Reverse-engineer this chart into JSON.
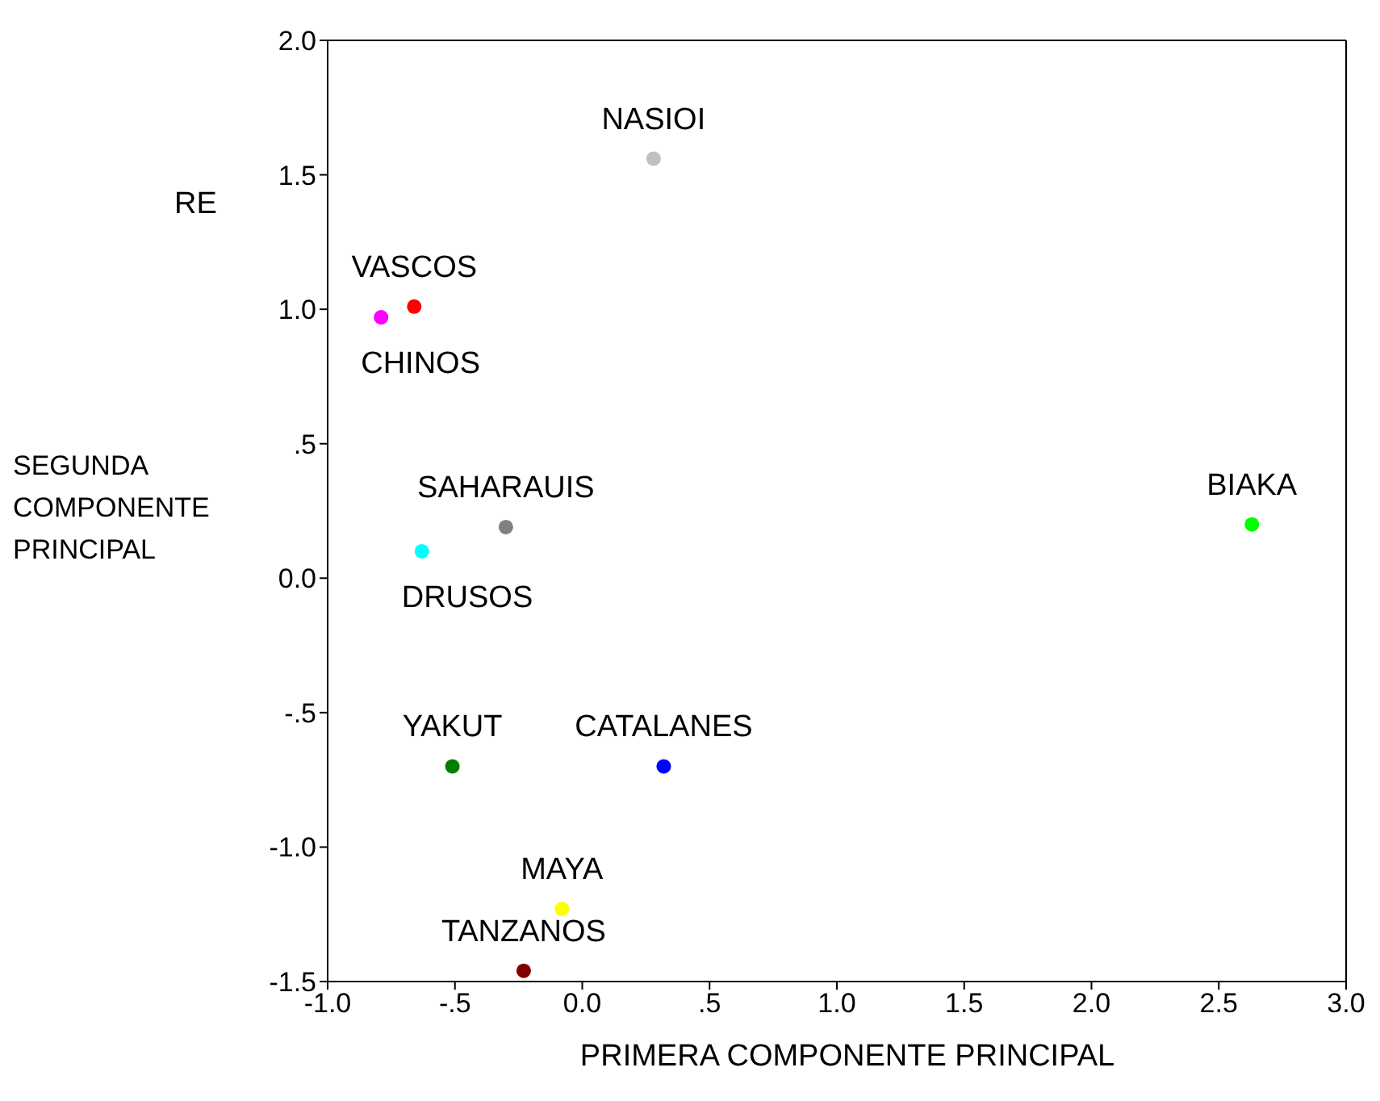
{
  "chart_data": {
    "type": "scatter",
    "xlabel": "PRIMERA COMPONENTE PRINCIPAL",
    "ylabel": "SEGUNDA COMPONENTE PRINCIPAL",
    "annotations": [
      "RE"
    ],
    "xlim": [
      -1.0,
      3.0
    ],
    "xticks": [
      {
        "value": -1,
        "label": "-1.0"
      },
      {
        "value": -0.5,
        "label": "-.5"
      },
      {
        "value": 0,
        "label": "0.0"
      },
      {
        "value": 0.5,
        "label": ".5"
      },
      {
        "value": 1,
        "label": "1.0"
      },
      {
        "value": 1.5,
        "label": "1.5"
      },
      {
        "value": 2,
        "label": "2.0"
      },
      {
        "value": 2.5,
        "label": "2.5"
      },
      {
        "value": 3,
        "label": "3.0"
      }
    ],
    "ylim": [
      -1.5,
      2.0
    ],
    "yticks": [
      {
        "value": -1.5,
        "label": "-1.5"
      },
      {
        "value": -1,
        "label": "-1.0"
      },
      {
        "value": -0.5,
        "label": "-.5"
      },
      {
        "value": 0,
        "label": "0.0"
      },
      {
        "value": 0.5,
        "label": ".5"
      },
      {
        "value": 1,
        "label": "1.0"
      },
      {
        "value": 1.5,
        "label": "1.5"
      },
      {
        "value": 2,
        "label": "2.0"
      }
    ],
    "grid": false,
    "legend": false,
    "marker": "circle",
    "series": [
      {
        "name": "NASIOI",
        "color": "#c0c0c0",
        "x": [
          0.28
        ],
        "values": [
          1.56
        ]
      },
      {
        "name": "VASCOS",
        "color": "#ff0000",
        "x": [
          -0.66
        ],
        "values": [
          1.01
        ]
      },
      {
        "name": "CHINOS",
        "color": "#ff00ff",
        "x": [
          -0.79
        ],
        "values": [
          0.97
        ]
      },
      {
        "name": "SAHARAUIS",
        "color": "#808080",
        "x": [
          -0.3
        ],
        "values": [
          0.19
        ]
      },
      {
        "name": "DRUSOS",
        "color": "#00ffff",
        "x": [
          -0.63
        ],
        "values": [
          0.1
        ]
      },
      {
        "name": "BIAKA",
        "color": "#00ff00",
        "x": [
          2.63
        ],
        "values": [
          0.2
        ]
      },
      {
        "name": "YAKUT",
        "color": "#008000",
        "x": [
          -0.51
        ],
        "values": [
          -0.7
        ]
      },
      {
        "name": "CATALANES",
        "color": "#0000ff",
        "x": [
          0.32
        ],
        "values": [
          -0.7
        ]
      },
      {
        "name": "MAYA",
        "color": "#ffff00",
        "x": [
          -0.08
        ],
        "values": [
          -1.23
        ]
      },
      {
        "name": "TANZANOS",
        "color": "#800000",
        "x": [
          -0.23
        ],
        "values": [
          -1.46
        ]
      }
    ]
  }
}
